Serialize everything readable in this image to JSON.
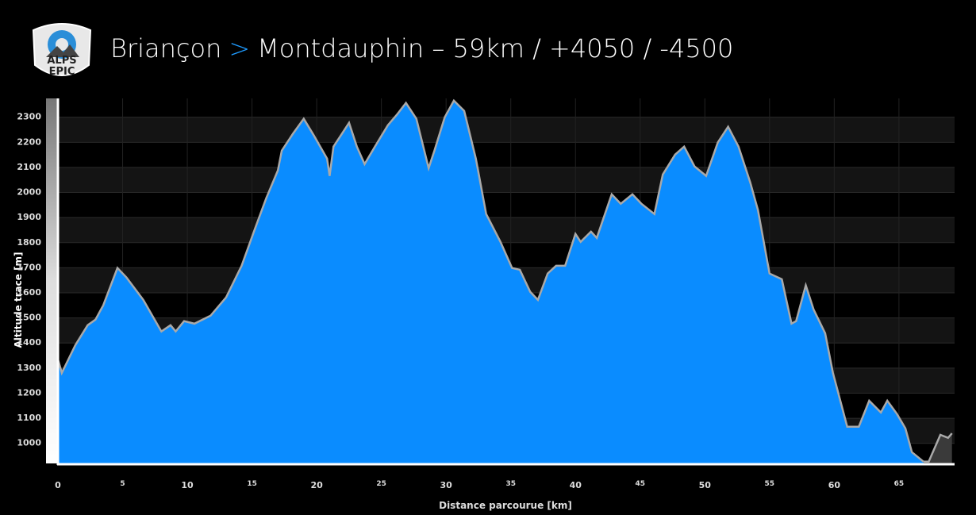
{
  "logo": {
    "lines": [
      "ALPS",
      "EPIC"
    ]
  },
  "chart_data": {
    "type": "area",
    "title": [
      "Briançon",
      ">",
      "Montdauphin – 59km / +4050 / -4500"
    ],
    "x_label": "Distance parcourue [km]",
    "y_label": "Altitude trace [m]",
    "xlim": [
      0,
      69.3
    ],
    "ylim": [
      920,
      2375
    ],
    "xticks": [
      0,
      5,
      10,
      15,
      20,
      25,
      30,
      35,
      40,
      45,
      50,
      55,
      60,
      65
    ],
    "yticks": [
      1000,
      1100,
      1200,
      1300,
      1400,
      1500,
      1600,
      1700,
      1800,
      1900,
      2000,
      2100,
      2200,
      2300
    ],
    "grid": true,
    "x": [
      0,
      0.3,
      1.35,
      2.3,
      2.9,
      3.5,
      4.6,
      5.3,
      6.6,
      8.0,
      8.7,
      9.1,
      9.75,
      10.55,
      11.8,
      13.0,
      14.2,
      15.2,
      16.1,
      17.0,
      17.3,
      18.2,
      19.0,
      19.75,
      20.8,
      21.0,
      21.3,
      21.9,
      22.5,
      23.1,
      23.7,
      24.5,
      25.5,
      26.2,
      26.9,
      27.7,
      28.65,
      29.1,
      29.9,
      30.6,
      31.4,
      32.3,
      33.1,
      34.2,
      35.1,
      35.7,
      36.5,
      37.1,
      37.85,
      38.5,
      39.2,
      40.0,
      40.4,
      41.2,
      41.65,
      42.8,
      43.5,
      44.4,
      45.1,
      46.1,
      46.75,
      47.7,
      48.4,
      49.2,
      50.1,
      51.0,
      51.8,
      52.6,
      53.5,
      54.1,
      55.0,
      55.95,
      56.7,
      57.05,
      57.8,
      58.4,
      59.3,
      59.9,
      61.0,
      61.9,
      62.7,
      63.6,
      64.1,
      64.85,
      65.5,
      66.0,
      66.9,
      67.3,
      68.2,
      68.8,
      69.1
    ],
    "series": [
      {
        "color": "#0a8cff",
        "values": [
          1335,
          1281,
          1392,
          1471,
          1493,
          1550,
          1699,
          1661,
          1572,
          1446,
          1471,
          1446,
          1487,
          1477,
          1509,
          1582,
          1708,
          1851,
          1977,
          2088,
          2167,
          2237,
          2294,
          2230,
          2135,
          2066,
          2183,
          2230,
          2278,
          2183,
          2113,
          2183,
          2268,
          2310,
          2357,
          2294,
          2097,
          2167,
          2300,
          2366,
          2325,
          2135,
          1914,
          1803,
          1699,
          1692,
          1604,
          1572,
          1677,
          1708,
          1708,
          1835,
          1803,
          1844,
          1819,
          1993,
          1955,
          1993,
          1955,
          1914,
          2072,
          2151,
          2183,
          2104,
          2066,
          2199,
          2262,
          2183,
          2041,
          1930,
          1677,
          1654,
          1477,
          1487,
          1630,
          1534,
          1439,
          1281,
          1066,
          1066,
          1170,
          1123,
          1170,
          1117,
          1060,
          965,
          927,
          null,
          null,
          null,
          null
        ]
      },
      {
        "color": "#3a3a3a",
        "values": [
          null,
          null,
          null,
          null,
          null,
          null,
          null,
          null,
          null,
          null,
          null,
          null,
          null,
          null,
          null,
          null,
          null,
          null,
          null,
          null,
          null,
          null,
          null,
          null,
          null,
          null,
          null,
          null,
          null,
          null,
          null,
          null,
          null,
          null,
          null,
          null,
          null,
          null,
          null,
          null,
          null,
          null,
          null,
          null,
          null,
          null,
          null,
          null,
          null,
          null,
          null,
          null,
          null,
          null,
          null,
          null,
          null,
          null,
          null,
          null,
          null,
          null,
          null,
          null,
          null,
          null,
          null,
          null,
          null,
          null,
          null,
          null,
          null,
          null,
          null,
          null,
          null,
          null,
          null,
          null,
          null,
          null,
          null,
          null,
          null,
          null,
          927,
          927,
          1034,
          1022,
          1040
        ]
      }
    ]
  }
}
